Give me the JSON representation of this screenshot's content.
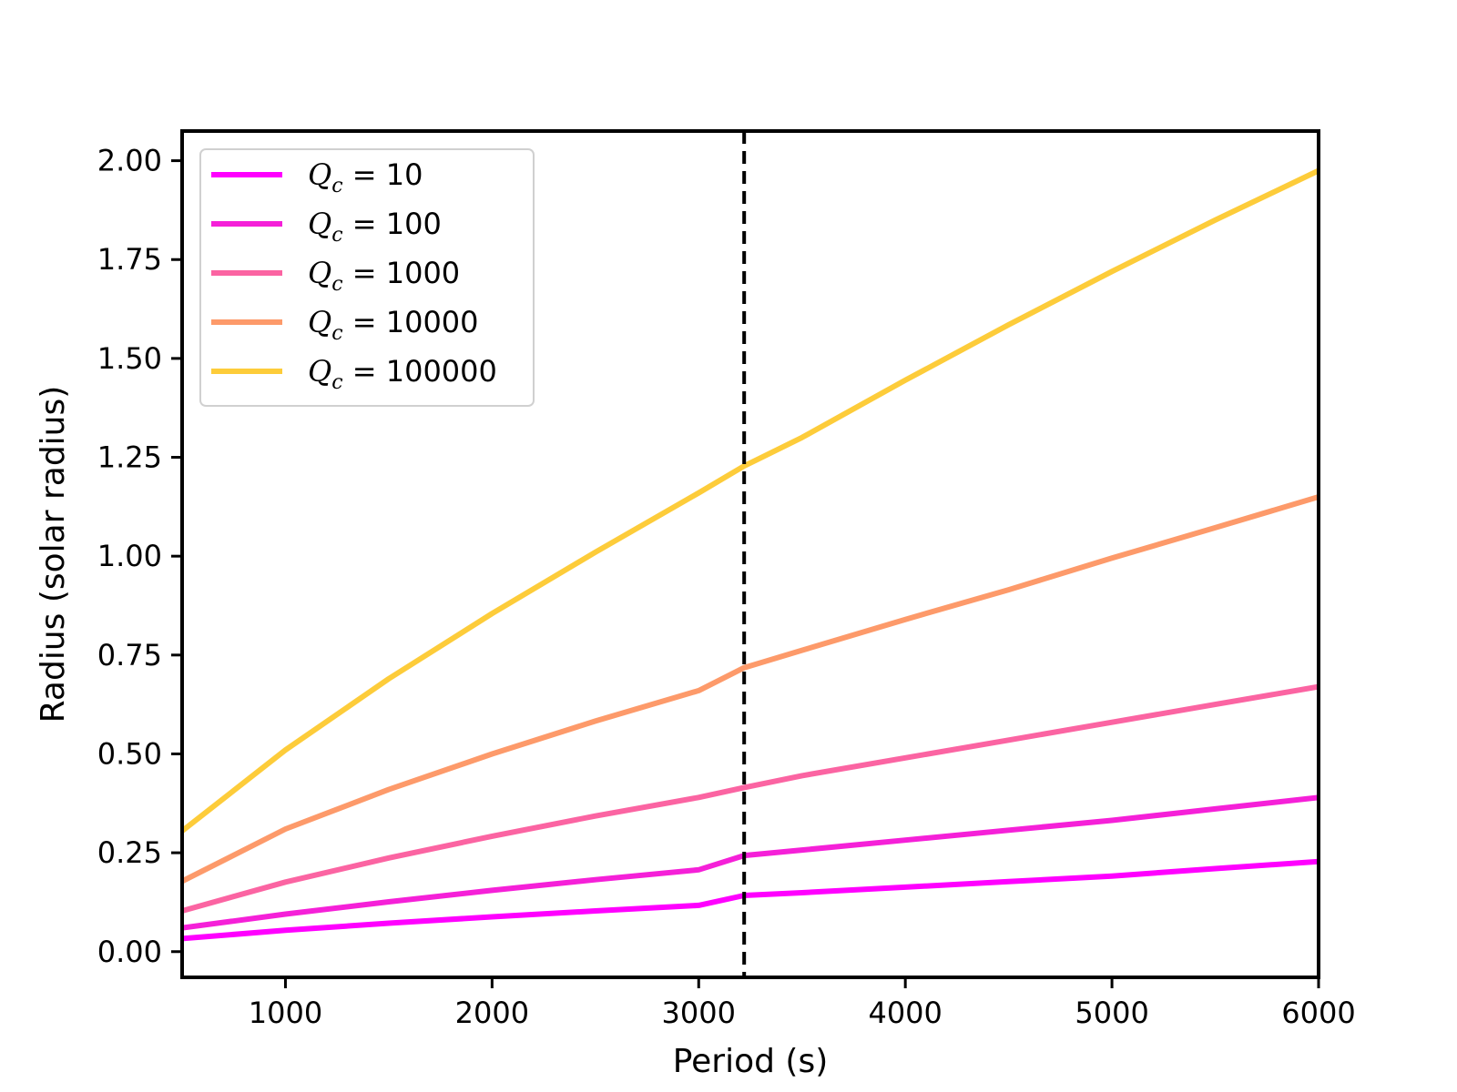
{
  "chart_data": {
    "type": "line",
    "title": "",
    "xlabel": "Period (s)",
    "ylabel": "Radius (solar radius)",
    "xlim": [
      500,
      6000
    ],
    "ylim": [
      -0.065,
      2.075
    ],
    "x_ticks": [
      1000,
      2000,
      3000,
      4000,
      5000,
      6000
    ],
    "x_tick_labels": [
      "1000",
      "2000",
      "3000",
      "4000",
      "5000",
      "6000"
    ],
    "y_ticks": [
      0.0,
      0.25,
      0.5,
      0.75,
      1.0,
      1.25,
      1.5,
      1.75,
      2.0
    ],
    "y_tick_labels": [
      "0.00",
      "0.25",
      "0.50",
      "0.75",
      "1.00",
      "1.25",
      "1.50",
      "1.75",
      "2.00"
    ],
    "grid": false,
    "legend_position": "top-left",
    "vline": {
      "x": 3220,
      "style": "dashed",
      "color": "#000000"
    },
    "x": [
      500,
      1000,
      1500,
      2000,
      2500,
      3000,
      3220,
      3500,
      4000,
      4500,
      5000,
      5500,
      6000
    ],
    "series": [
      {
        "legend_symbol": "Q",
        "legend_subscript": "c",
        "legend_value": "= 10",
        "color": "#ff00ff",
        "values": [
          0.033,
          0.054,
          0.072,
          0.088,
          0.103,
          0.117,
          0.142,
          0.149,
          0.163,
          0.177,
          0.191,
          0.21,
          0.228
        ]
      },
      {
        "legend_symbol": "Q",
        "legend_subscript": "c",
        "legend_value": "= 100",
        "color": "#f520d8",
        "values": [
          0.06,
          0.095,
          0.126,
          0.155,
          0.182,
          0.207,
          0.243,
          0.257,
          0.282,
          0.307,
          0.332,
          0.361,
          0.39
        ]
      },
      {
        "legend_symbol": "Q",
        "legend_subscript": "c",
        "legend_value": "= 1000",
        "color": "#fb64a2",
        "values": [
          0.103,
          0.176,
          0.237,
          0.292,
          0.343,
          0.39,
          0.415,
          0.445,
          0.49,
          0.535,
          0.58,
          0.625,
          0.67
        ]
      },
      {
        "legend_symbol": "Q",
        "legend_subscript": "c",
        "legend_value": "= 10000",
        "color": "#fd9a6a",
        "values": [
          0.178,
          0.31,
          0.41,
          0.5,
          0.583,
          0.66,
          0.718,
          0.762,
          0.84,
          0.915,
          0.995,
          1.072,
          1.15
        ]
      },
      {
        "legend_symbol": "Q",
        "legend_subscript": "c",
        "legend_value": "= 100000",
        "color": "#fdcc3a",
        "values": [
          0.305,
          0.51,
          0.69,
          0.855,
          1.01,
          1.16,
          1.228,
          1.3,
          1.445,
          1.585,
          1.72,
          1.85,
          1.975
        ]
      }
    ]
  }
}
